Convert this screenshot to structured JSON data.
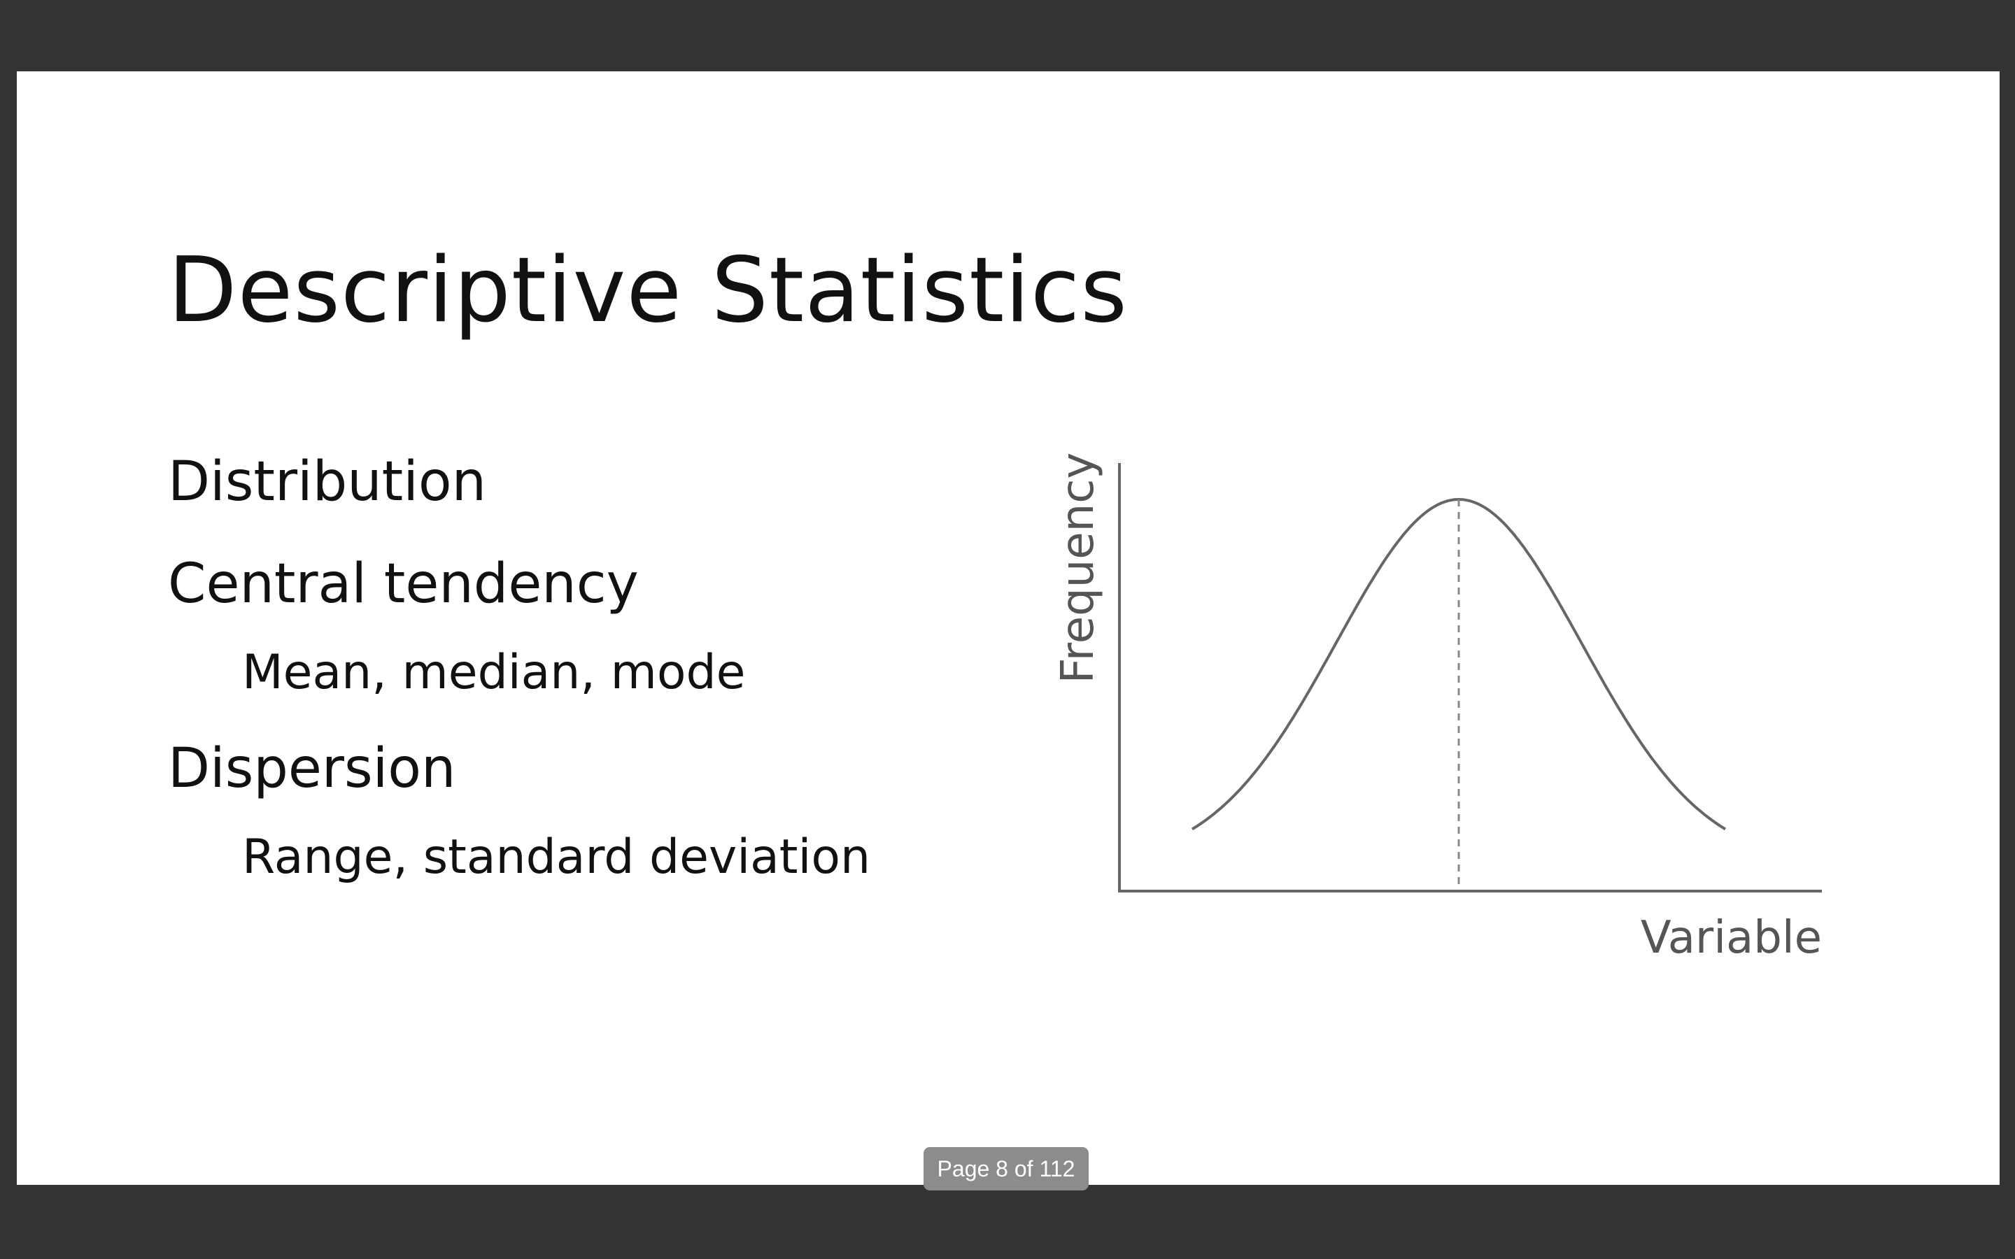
{
  "slide": {
    "title": "Descriptive Statistics",
    "bullets": [
      {
        "level": 1,
        "text": "Distribution"
      },
      {
        "level": 1,
        "text": "Central tendency"
      },
      {
        "level": 2,
        "text": "Mean, median, mode"
      },
      {
        "level": 1,
        "text": "Dispersion"
      },
      {
        "level": 2,
        "text": "Range, standard deviation"
      }
    ]
  },
  "chart_data": {
    "type": "line",
    "title": "",
    "xlabel": "Variable",
    "ylabel": "Frequency",
    "curve": "normal distribution (bell curve)",
    "center_marker": "dashed vertical line at the peak",
    "grid": false,
    "line_color": "#666666",
    "axis_color": "#666666",
    "label_color": "#555555"
  },
  "viewer": {
    "page_indicator": "Page 8 of 112",
    "background_color": "#333333"
  }
}
